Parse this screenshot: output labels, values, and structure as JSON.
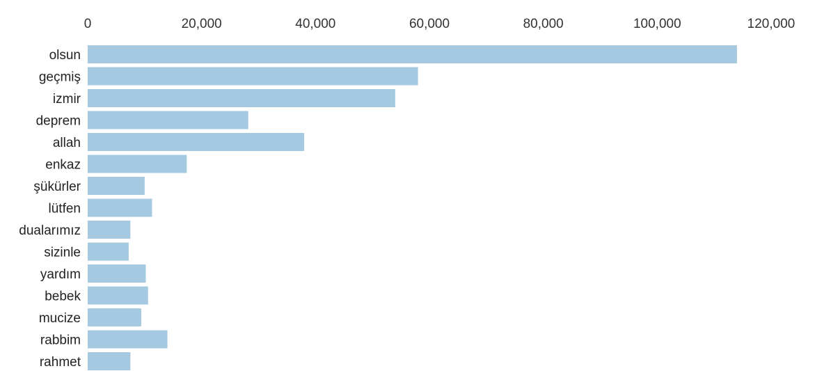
{
  "chart_data": {
    "type": "bar",
    "orientation": "horizontal",
    "title": "",
    "xlabel": "",
    "ylabel": "",
    "xaxis_position": "top",
    "grid": false,
    "legend": "none",
    "xlim": [
      0,
      120000
    ],
    "xticks": [
      0,
      20000,
      40000,
      60000,
      80000,
      100000,
      120000
    ],
    "xtick_labels": [
      "0",
      "20,000",
      "40,000",
      "60,000",
      "80,000",
      "100,000",
      "120,000"
    ],
    "categories": [
      "olsun",
      "geçmiş",
      "izmir",
      "deprem",
      "allah",
      "enkaz",
      "şükürler",
      "lütfen",
      "dualarımız",
      "sizinle",
      "yardım",
      "bebek",
      "mucize",
      "rabbim",
      "rahmet"
    ],
    "values": [
      114000,
      58000,
      54000,
      28200,
      38000,
      17400,
      10000,
      11300,
      7500,
      7200,
      10200,
      10600,
      9400,
      14000,
      7500
    ]
  },
  "colors": {
    "bar": "#a6c9e2",
    "text": "#222222",
    "tick": "#333333"
  }
}
